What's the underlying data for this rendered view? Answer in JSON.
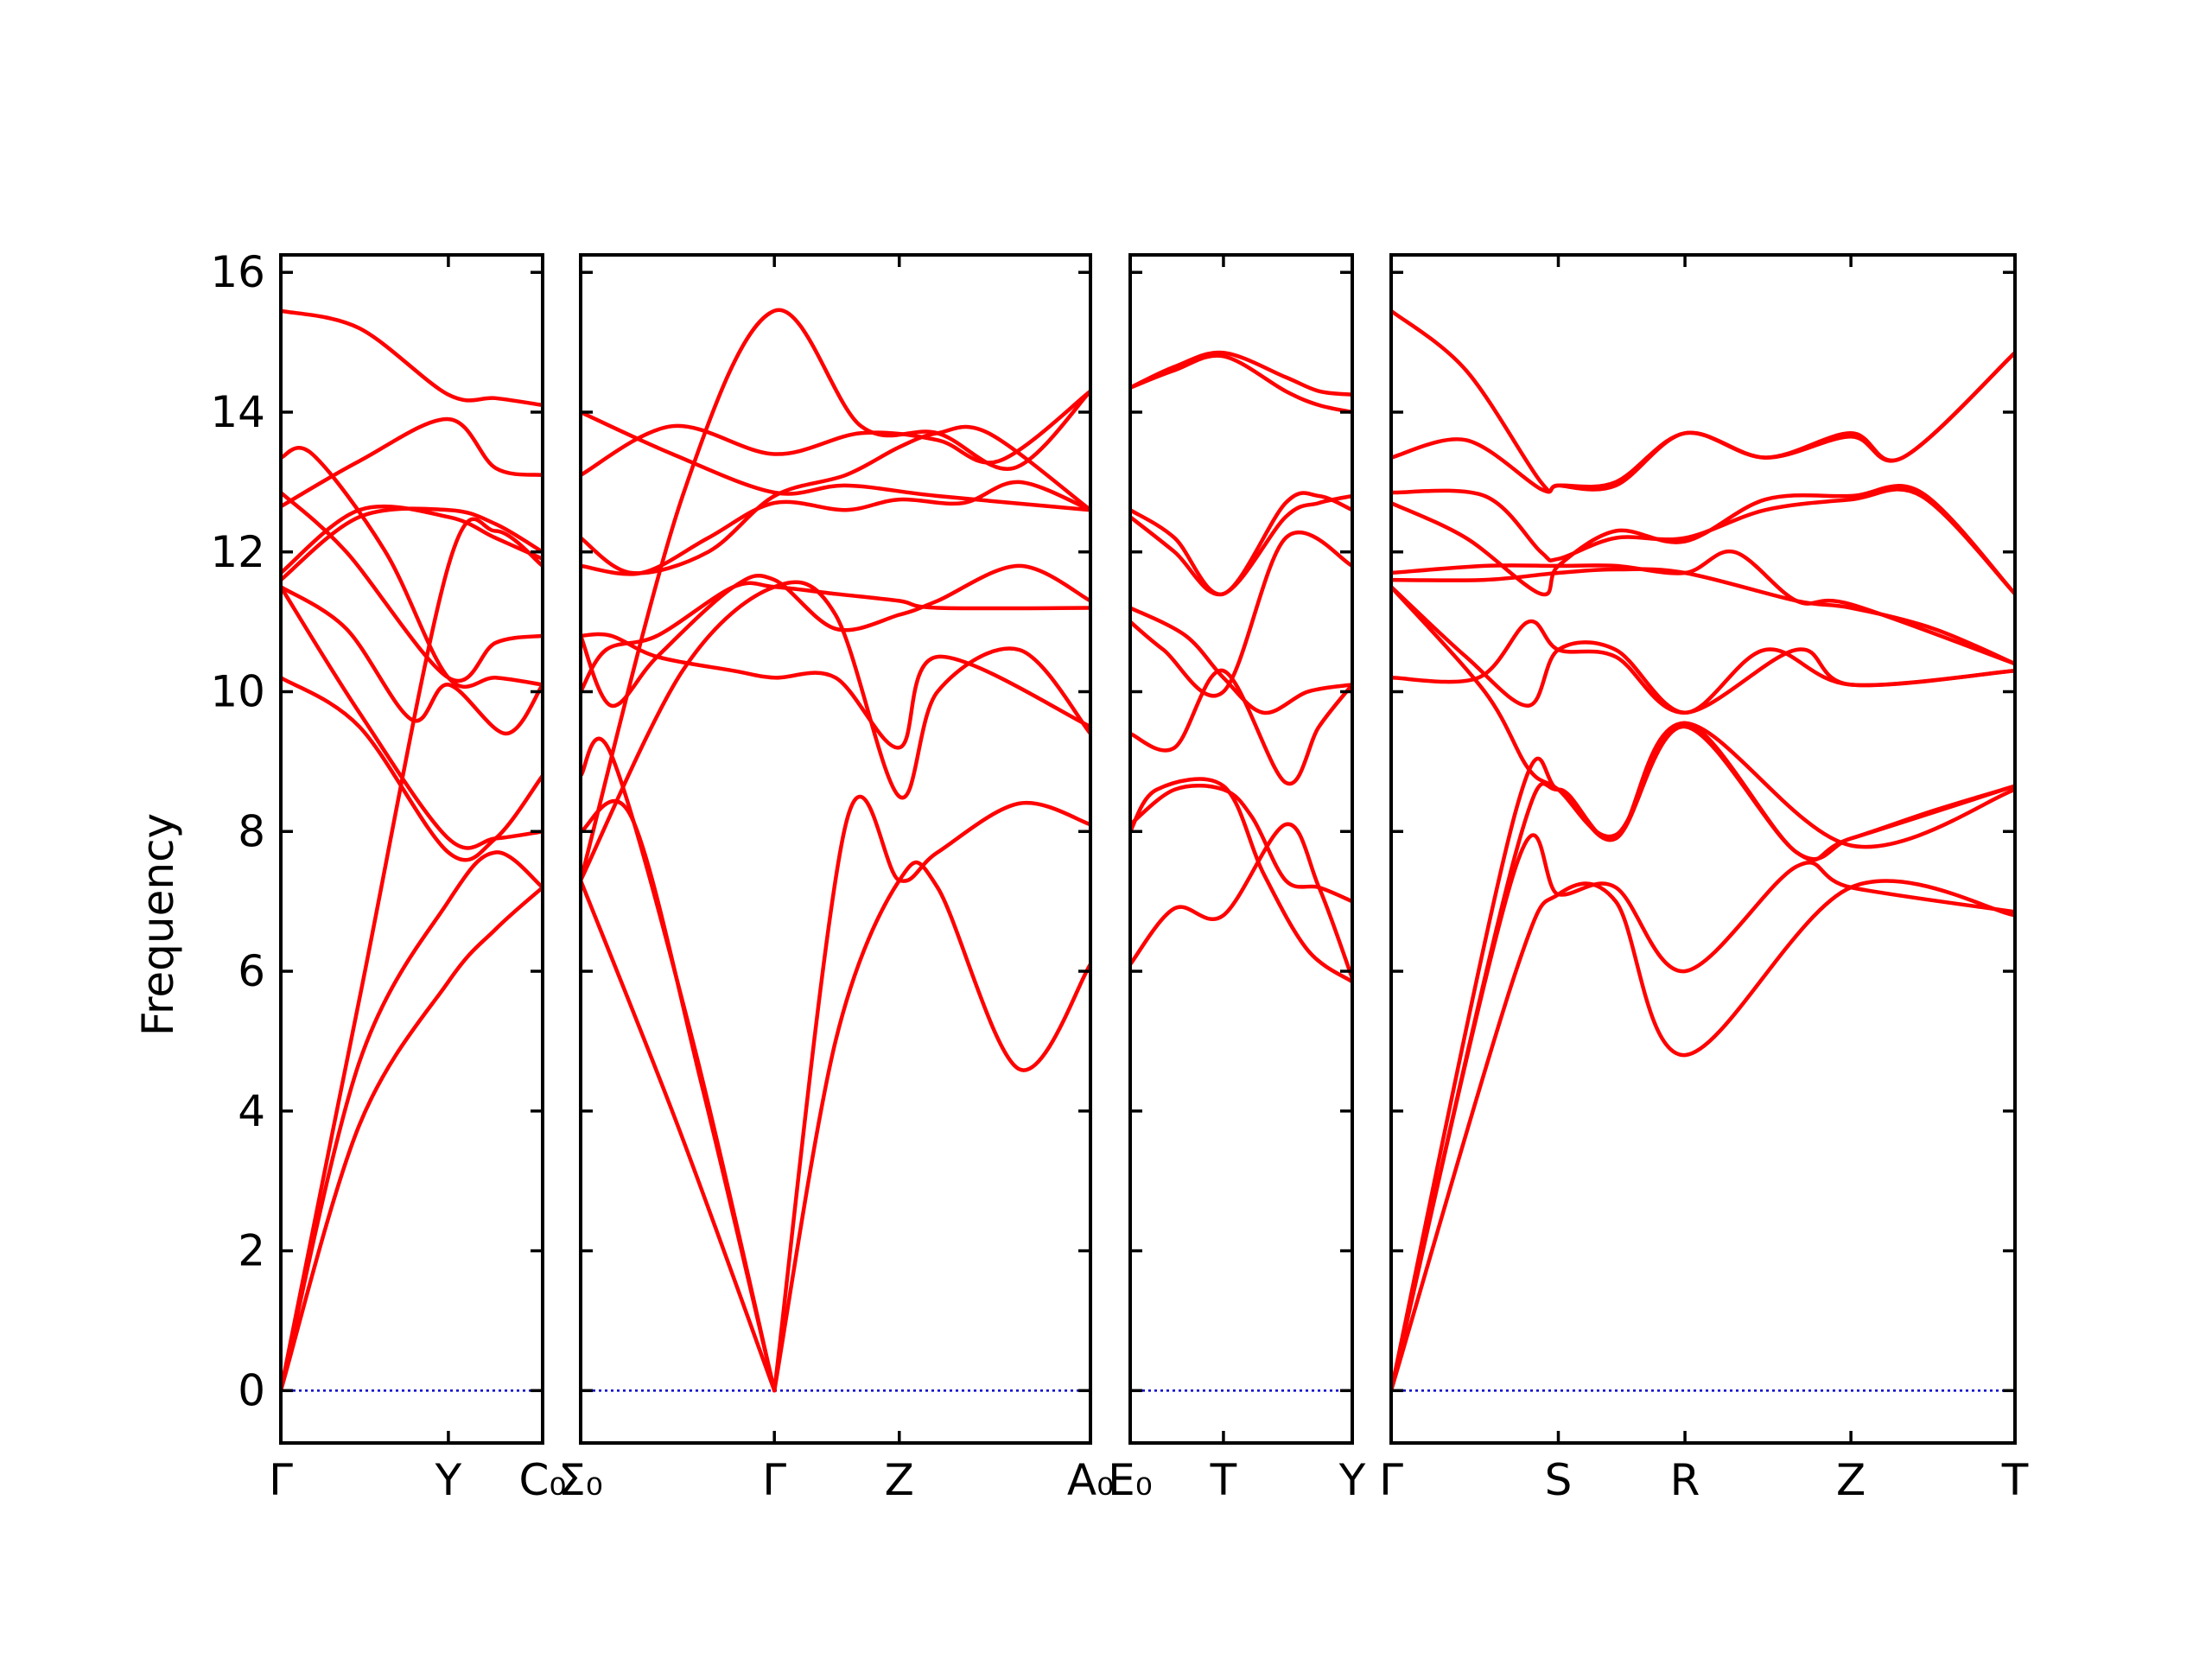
{
  "chart_data": {
    "type": "line",
    "title": "",
    "ylabel": "Frequency",
    "ylim": [
      -0.75,
      16.25
    ],
    "yticks": [
      0,
      2,
      4,
      6,
      8,
      10,
      12,
      14,
      16
    ],
    "grid": false,
    "colors": {
      "bands": "#ff0000",
      "zero": "#0000cc",
      "frame": "#000000"
    },
    "panels": [
      {
        "xticks": [
          {
            "x": 0,
            "label": "Γ"
          },
          {
            "x": 0.64,
            "label": "Y"
          },
          {
            "x": 1,
            "label": "C₀"
          }
        ],
        "bands": [
          {
            "x": [
              0,
              0.3,
              0.64,
              0.82,
              1
            ],
            "y": [
              0,
              5.6,
              11.8,
              12.3,
              11.8
            ]
          },
          {
            "x": [
              0,
              0.3,
              0.64,
              0.82,
              1
            ],
            "y": [
              0,
              4.7,
              7.0,
              7.7,
              7.2
            ]
          },
          {
            "x": [
              0,
              0.3,
              0.64,
              0.82,
              1
            ],
            "y": [
              0,
              3.8,
              5.85,
              6.6,
              7.2
            ]
          },
          {
            "x": [
              0,
              0.3,
              0.64,
              0.82,
              1
            ],
            "y": [
              10.2,
              9.5,
              7.7,
              7.9,
              8.8
            ]
          },
          {
            "x": [
              0,
              0.3,
              0.64,
              0.82,
              1
            ],
            "y": [
              11.5,
              9.7,
              7.9,
              7.9,
              8.0
            ]
          },
          {
            "x": [
              0,
              0.25,
              0.5,
              0.64,
              0.86,
              1
            ],
            "y": [
              11.5,
              10.9,
              9.6,
              10.1,
              9.4,
              10.1
            ]
          },
          {
            "x": [
              0,
              0.3,
              0.64,
              0.82,
              1
            ],
            "y": [
              11.6,
              12.5,
              12.6,
              12.4,
              12.0
            ]
          },
          {
            "x": [
              0,
              0.3,
              0.64,
              0.82,
              1
            ],
            "y": [
              11.7,
              12.6,
              12.5,
              12.2,
              11.9
            ]
          },
          {
            "x": [
              0,
              0.25,
              0.64,
              0.82,
              1
            ],
            "y": [
              12.85,
              12.0,
              10.2,
              10.7,
              10.8
            ]
          },
          {
            "x": [
              0,
              0.12,
              0.4,
              0.64,
              0.82,
              1
            ],
            "y": [
              13.35,
              13.4,
              12.0,
              10.2,
              10.2,
              10.1
            ]
          },
          {
            "x": [
              0,
              0.3,
              0.64,
              0.82,
              1
            ],
            "y": [
              12.65,
              13.3,
              13.9,
              13.2,
              13.1
            ]
          },
          {
            "x": [
              0,
              0.3,
              0.64,
              0.82,
              1
            ],
            "y": [
              15.45,
              15.2,
              14.25,
              14.2,
              14.1
            ]
          }
        ],
        "zero": true
      },
      {
        "xticks": [
          {
            "x": 0,
            "label": "Σ₀"
          },
          {
            "x": 0.38,
            "label": "Γ"
          },
          {
            "x": 0.625,
            "label": "Z"
          },
          {
            "x": 1,
            "label": "A₀"
          }
        ],
        "bands": [
          {
            "x": [
              0,
              0.19,
              0.38
            ],
            "y": [
              7.3,
              3.8,
              0
            ]
          },
          {
            "x": [
              0,
              0.06,
              0.22,
              0.38
            ],
            "y": [
              8.8,
              9.1,
              5.0,
              0
            ]
          },
          {
            "x": [
              0,
              0.1,
              0.24,
              0.38
            ],
            "y": [
              8.0,
              8.2,
              4.3,
              0
            ]
          },
          {
            "x": [
              0.38,
              0.52,
              0.625,
              0.7,
              0.86,
              1
            ],
            "y": [
              0,
              8.1,
              7.3,
              7.7,
              8.4,
              8.1
            ]
          },
          {
            "x": [
              0.38,
              0.5,
              0.625,
              0.7,
              0.86,
              1
            ],
            "y": [
              0,
              5.0,
              7.3,
              7.2,
              4.6,
              6.1
            ]
          },
          {
            "x": [
              0,
              0.2,
              0.38,
              0.5,
              0.625,
              0.7,
              0.86,
              1
            ],
            "y": [
              7.3,
              10.3,
              11.5,
              11.1,
              8.5,
              10.0,
              10.6,
              9.4
            ]
          },
          {
            "x": [
              0,
              0.05,
              0.15,
              0.3,
              0.38,
              0.5,
              0.625,
              0.7,
              1
            ],
            "y": [
              10.0,
              10.6,
              10.8,
              11.5,
              11.5,
              11.4,
              11.3,
              11.2,
              11.2
            ]
          },
          {
            "x": [
              0,
              0.06,
              0.15,
              0.3,
              0.38,
              0.5,
              0.625,
              0.7,
              0.86,
              1
            ],
            "y": [
              10.8,
              9.8,
              10.5,
              11.5,
              11.6,
              10.9,
              11.1,
              11.3,
              11.8,
              11.3
            ]
          },
          {
            "x": [
              0,
              0.06,
              0.15,
              0.3,
              0.38,
              0.5,
              0.625,
              0.7,
              1
            ],
            "y": [
              10.8,
              10.8,
              10.5,
              10.3,
              10.2,
              10.2,
              9.2,
              10.5,
              9.5
            ]
          },
          {
            "x": [
              0,
              0.12,
              0.25,
              0.38,
              0.52,
              0.625,
              0.75,
              0.86,
              1
            ],
            "y": [
              11.8,
              11.7,
              12.2,
              12.7,
              12.6,
              12.75,
              12.7,
              13.0,
              12.6
            ]
          },
          {
            "x": [
              0,
              0.1,
              0.25,
              0.38,
              0.52,
              0.625,
              0.7,
              0.8,
              1
            ],
            "y": [
              12.2,
              11.7,
              12.0,
              12.8,
              13.1,
              13.5,
              13.7,
              13.7,
              12.6
            ]
          },
          {
            "x": [
              0,
              0.18,
              0.38,
              0.55,
              0.7,
              0.82,
              1
            ],
            "y": [
              13.1,
              13.8,
              13.4,
              13.7,
              13.6,
              13.3,
              14.3
            ]
          },
          {
            "x": [
              0,
              0.18,
              0.38,
              0.52,
              0.7,
              1
            ],
            "y": [
              14.0,
              13.4,
              12.85,
              12.95,
              12.8,
              12.6
            ]
          },
          {
            "x": [
              0,
              0.2,
              0.38,
              0.55,
              0.7,
              0.85,
              1
            ],
            "y": [
              7.3,
              12.8,
              15.45,
              13.8,
              13.7,
              13.2,
              14.3
            ]
          }
        ],
        "zero": true
      },
      {
        "xticks": [
          {
            "x": 0,
            "label": "E₀"
          },
          {
            "x": 0.42,
            "label": "T"
          },
          {
            "x": 1,
            "label": "Y"
          }
        ],
        "bands": [
          {
            "x": [
              0,
              0.2,
              0.42,
              0.7,
              0.85,
              1
            ],
            "y": [
              6.1,
              6.9,
              6.8,
              8.1,
              7.2,
              5.9
            ]
          },
          {
            "x": [
              0,
              0.2,
              0.42,
              0.55,
              0.7,
              0.85,
              1
            ],
            "y": [
              8.1,
              8.6,
              8.6,
              8.2,
              7.3,
              7.2,
              7.0
            ]
          },
          {
            "x": [
              0,
              0.12,
              0.42,
              0.6,
              0.8,
              1
            ],
            "y": [
              8.0,
              8.6,
              8.65,
              7.4,
              6.3,
              5.85
            ]
          },
          {
            "x": [
              0,
              0.2,
              0.42,
              0.7,
              0.85,
              1
            ],
            "y": [
              9.4,
              9.2,
              10.3,
              8.7,
              9.5,
              10.1
            ]
          },
          {
            "x": [
              0,
              0.25,
              0.42,
              0.6,
              0.8,
              1
            ],
            "y": [
              11.2,
              10.8,
              10.2,
              9.7,
              10.0,
              10.1
            ]
          },
          {
            "x": [
              0,
              0.15,
              0.42,
              0.7,
              1
            ],
            "y": [
              11.0,
              10.6,
              10.0,
              12.2,
              11.8
            ]
          },
          {
            "x": [
              0,
              0.2,
              0.42,
              0.7,
              0.85,
              1
            ],
            "y": [
              12.6,
              12.2,
              11.4,
              12.7,
              12.8,
              12.6
            ]
          },
          {
            "x": [
              0,
              0.2,
              0.42,
              0.7,
              0.85,
              1
            ],
            "y": [
              12.5,
              12.0,
              11.4,
              12.5,
              12.7,
              12.8
            ]
          },
          {
            "x": [
              0,
              0.2,
              0.42,
              0.7,
              0.85,
              1
            ],
            "y": [
              14.35,
              14.6,
              14.8,
              14.3,
              14.1,
              14.0
            ]
          },
          {
            "x": [
              0,
              0.2,
              0.42,
              0.7,
              0.85,
              1
            ],
            "y": [
              14.35,
              14.65,
              14.85,
              14.5,
              14.3,
              14.25
            ]
          }
        ],
        "zero": true
      },
      {
        "xticks": [
          {
            "x": 0,
            "label": "Γ"
          },
          {
            "x": 0.268,
            "label": "S"
          },
          {
            "x": 0.471,
            "label": "R"
          },
          {
            "x": 0.737,
            "label": "Z"
          },
          {
            "x": 1,
            "label": "T"
          }
        ],
        "bands": [
          {
            "x": [
              0,
              0.2,
              0.268,
              0.36,
              0.471,
              0.737,
              1
            ],
            "y": [
              0,
              6.0,
              7.1,
              7.0,
              4.8,
              7.2,
              6.8
            ]
          },
          {
            "x": [
              0,
              0.2,
              0.268,
              0.36,
              0.471,
              0.65,
              0.737,
              1
            ],
            "y": [
              0,
              7.5,
              7.1,
              7.2,
              6.0,
              7.5,
              7.2,
              6.85
            ]
          },
          {
            "x": [
              0,
              0.2,
              0.268,
              0.36,
              0.471,
              0.65,
              0.737,
              1
            ],
            "y": [
              0,
              7.7,
              8.6,
              7.9,
              9.55,
              7.7,
              7.9,
              8.65
            ]
          },
          {
            "x": [
              0,
              0.2,
              0.268,
              0.36,
              0.471,
              0.737,
              1
            ],
            "y": [
              0,
              8.3,
              8.6,
              7.9,
              9.55,
              7.8,
              8.6
            ]
          },
          {
            "x": [
              0,
              0.15,
              0.22,
              0.268,
              0.36,
              0.471,
              0.65,
              0.737,
              0.87,
              1
            ],
            "y": [
              11.5,
              10.0,
              8.9,
              8.6,
              7.95,
              9.5,
              7.7,
              7.9,
              8.3,
              8.65
            ]
          },
          {
            "x": [
              0,
              0.14,
              0.22,
              0.268,
              0.36,
              0.471,
              0.65,
              0.737,
              1
            ],
            "y": [
              10.2,
              10.2,
              11.0,
              10.6,
              10.5,
              9.7,
              10.6,
              10.1,
              10.3
            ]
          },
          {
            "x": [
              0,
              0.12,
              0.22,
              0.268,
              0.36,
              0.471,
              0.6,
              0.737,
              1
            ],
            "y": [
              11.5,
              10.5,
              9.8,
              10.6,
              10.6,
              9.7,
              10.6,
              10.1,
              10.3
            ]
          },
          {
            "x": [
              0,
              0.15,
              0.268,
              0.36,
              0.471,
              0.65,
              0.737,
              0.87,
              1
            ],
            "y": [
              11.6,
              11.6,
              11.7,
              11.75,
              11.7,
              11.3,
              11.2,
              10.9,
              10.4
            ]
          },
          {
            "x": [
              0,
              0.15,
              0.268,
              0.36,
              0.471,
              0.55,
              0.65,
              0.737,
              1
            ],
            "y": [
              11.7,
              11.8,
              11.8,
              11.8,
              11.7,
              12.0,
              11.3,
              11.25,
              10.4
            ]
          },
          {
            "x": [
              0,
              0.12,
              0.24,
              0.268,
              0.36,
              0.471,
              0.6,
              0.737,
              0.85,
              1
            ],
            "y": [
              12.7,
              12.2,
              11.4,
              11.8,
              12.3,
              12.15,
              12.75,
              12.8,
              12.85,
              11.4
            ]
          },
          {
            "x": [
              0,
              0.15,
              0.24,
              0.268,
              0.36,
              0.471,
              0.6,
              0.737,
              0.85,
              1
            ],
            "y": [
              12.85,
              12.8,
              12.0,
              11.9,
              12.2,
              12.2,
              12.6,
              12.75,
              12.8,
              11.4
            ]
          },
          {
            "x": [
              0,
              0.12,
              0.24,
              0.268,
              0.36,
              0.471,
              0.6,
              0.737,
              0.82,
              1
            ],
            "y": [
              13.35,
              13.6,
              12.9,
              12.95,
              13.0,
              13.7,
              13.35,
              13.7,
              13.35,
              14.85
            ]
          },
          {
            "x": [
              0,
              0.12,
              0.24,
              0.268,
              0.36,
              0.471,
              0.6,
              0.737,
              0.82,
              1
            ],
            "y": [
              15.45,
              14.6,
              13.0,
              12.95,
              12.95,
              13.7,
              13.35,
              13.65,
              13.35,
              14.85
            ]
          }
        ],
        "zero": true
      }
    ]
  }
}
